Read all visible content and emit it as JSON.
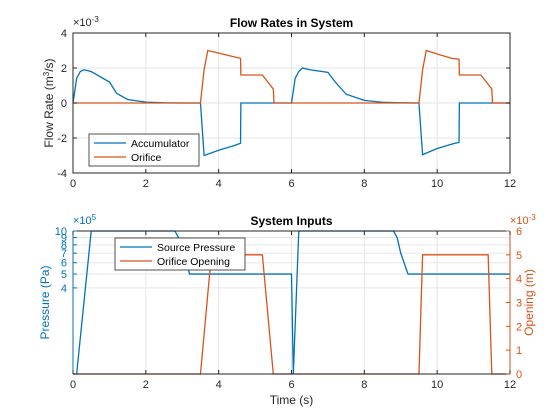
{
  "chart_data": [
    {
      "type": "line",
      "title": "Flow Rates in System",
      "xlabel": "",
      "ylabel": "Flow Rate (m³/s)",
      "ylabel_parts": {
        "pre": "Flow Rate (m",
        "sup": "3",
        "post": "/s)"
      },
      "y_exponent": {
        "base": "×10",
        "exp": "-3"
      },
      "xlim": [
        0,
        12
      ],
      "ylim": [
        -4,
        4
      ],
      "x_ticks": [
        0,
        2,
        4,
        6,
        8,
        10,
        12
      ],
      "y_ticks": [
        -4,
        -2,
        0,
        2,
        4
      ],
      "grid": true,
      "legend": "bottom-left",
      "series": [
        {
          "name": "Accumulator",
          "color": "#0072BD",
          "x": [
            0,
            0.1,
            0.2,
            0.3,
            0.5,
            1.0,
            1.2,
            1.5,
            2.0,
            2.5,
            3.0,
            3.5,
            3.55,
            3.6,
            4.0,
            4.4,
            4.6,
            4.61,
            5.0,
            6.0,
            6.1,
            6.2,
            6.3,
            6.5,
            7.0,
            7.2,
            7.5,
            8.0,
            8.5,
            9.0,
            9.5,
            9.55,
            9.6,
            10.0,
            10.4,
            10.6,
            10.61,
            11.0,
            12.0
          ],
          "y": [
            0,
            1.4,
            1.8,
            1.9,
            1.8,
            1.2,
            0.55,
            0.2,
            0.05,
            0.01,
            0,
            0,
            -1.5,
            -3.0,
            -2.7,
            -2.45,
            -2.3,
            0,
            0,
            0,
            1.4,
            1.8,
            2.0,
            1.9,
            1.75,
            1.2,
            0.5,
            0.15,
            0.04,
            0.01,
            0,
            -1.5,
            -2.95,
            -2.6,
            -2.35,
            -2.25,
            0,
            0,
            0
          ]
        },
        {
          "name": "Orifice",
          "color": "#D95319",
          "x": [
            0,
            3.5,
            3.6,
            3.7,
            4.0,
            4.4,
            4.6,
            4.61,
            5.2,
            5.5,
            5.52,
            6.0,
            9.5,
            9.6,
            9.7,
            10.0,
            10.4,
            10.6,
            10.61,
            11.2,
            11.5,
            11.52,
            12.0
          ],
          "y": [
            0,
            0,
            1.9,
            3.0,
            2.85,
            2.65,
            2.55,
            1.6,
            1.6,
            0.8,
            0,
            0,
            0,
            1.9,
            3.0,
            2.8,
            2.55,
            2.5,
            1.6,
            1.6,
            0.8,
            0,
            0
          ]
        }
      ]
    },
    {
      "type": "line",
      "title": "System Inputs",
      "xlabel": "Time (s)",
      "ylabel": "Pressure (Pa)",
      "ylabel_right": "Opening (m)",
      "y_exponent": {
        "base": "×10",
        "exp": "5"
      },
      "y_exponent_right": {
        "base": "×10",
        "exp": "-3"
      },
      "xlim": [
        0,
        12
      ],
      "ylim": [
        0,
        10
      ],
      "ylim_right": [
        0,
        6
      ],
      "y_scale": "log",
      "x_ticks": [
        0,
        2,
        4,
        6,
        8,
        10,
        12
      ],
      "y_ticks": [
        4,
        5,
        6,
        7,
        8,
        9,
        10
      ],
      "y_ticks_right": [
        0,
        1,
        2,
        3,
        4,
        5,
        6
      ],
      "grid": true,
      "legend": "top-left",
      "series": [
        {
          "name": "Source Pressure",
          "axis": "left",
          "color": "#0072BD",
          "x": [
            0,
            0.1,
            0.5,
            2.8,
            3.0,
            3.2,
            6.0,
            6.05,
            6.2,
            8.8,
            8.9,
            9.0,
            9.2,
            12.0
          ],
          "y": [
            0,
            1.0,
            10,
            10,
            8,
            5,
            5,
            1.0,
            10,
            10,
            9,
            7,
            5,
            5
          ]
        },
        {
          "name": "Orifice Opening",
          "axis": "right",
          "color": "#D95319",
          "x": [
            0,
            3.5,
            3.8,
            5.2,
            5.5,
            9.5,
            9.6,
            11.4,
            11.5,
            12.0
          ],
          "y": [
            0,
            0,
            5.0,
            5.0,
            0,
            0,
            5.0,
            5.0,
            0,
            0
          ]
        }
      ]
    }
  ]
}
